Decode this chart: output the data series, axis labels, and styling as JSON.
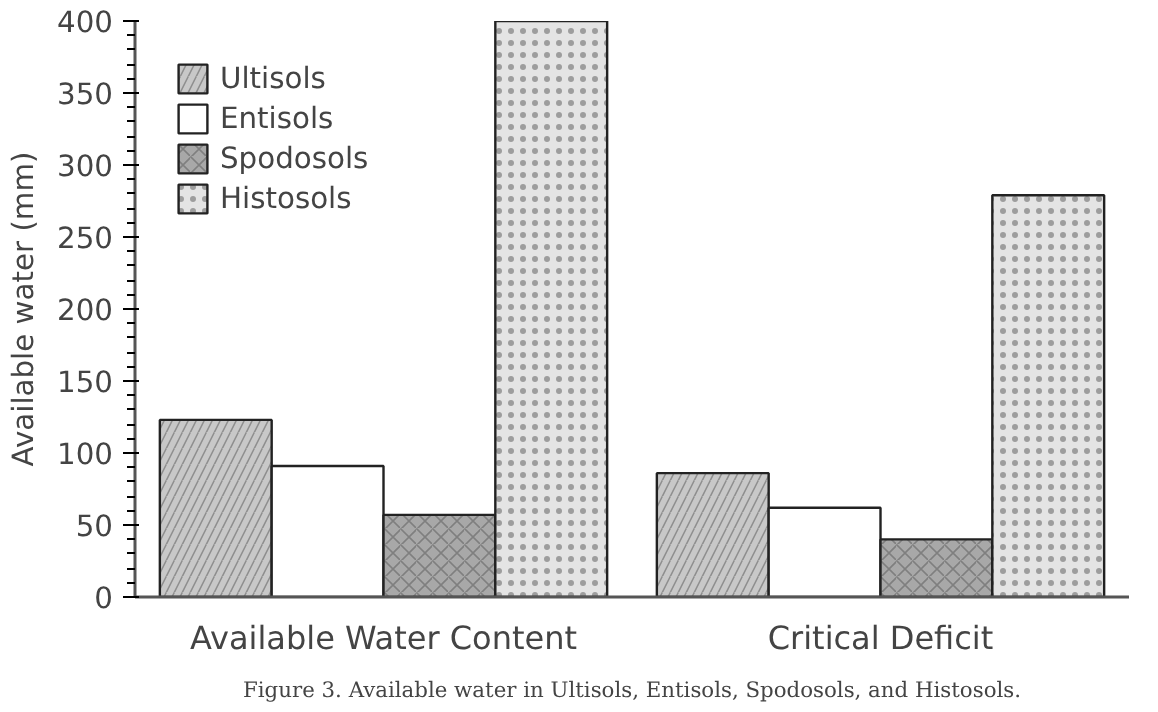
{
  "chart_data": {
    "type": "bar",
    "ylabel": "Available water (mm)",
    "categories": [
      "Available Water Content",
      "Critical Deficit"
    ],
    "series": [
      {
        "name": "Ultisols",
        "color": "#c8c8c8",
        "values": [
          123,
          86
        ]
      },
      {
        "name": "Entisols",
        "color": "#ffffff",
        "values": [
          91,
          62
        ]
      },
      {
        "name": "Spodosols",
        "color": "#a8a8a8",
        "values": [
          57,
          40
        ]
      },
      {
        "name": "Histosols",
        "color": "#e4e4e4",
        "values": [
          400,
          279
        ]
      }
    ],
    "ylim": [
      0,
      400
    ],
    "yticks": [
      0,
      50,
      100,
      150,
      200,
      250,
      300,
      350,
      400
    ],
    "grid": false,
    "legend": "top left",
    "annotations": [
      "Figure 3. Available water in Ultisols, Entisols, Spodosols, and Histosols."
    ]
  }
}
